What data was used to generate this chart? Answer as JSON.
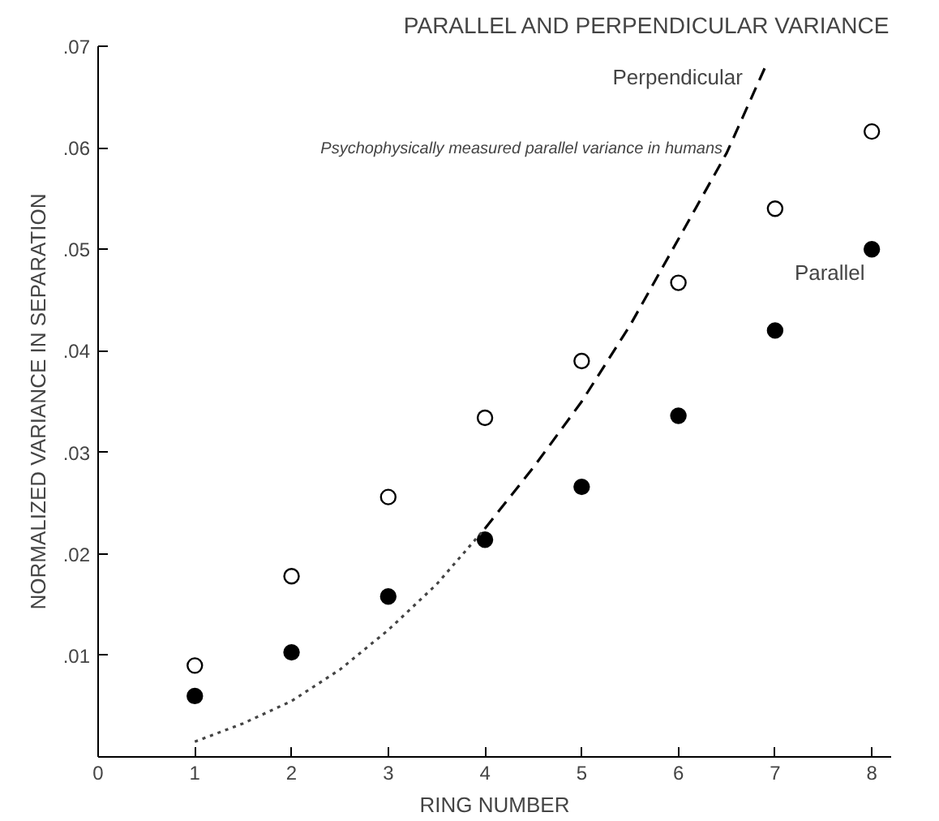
{
  "chart_data": {
    "type": "scatter",
    "title": "PARALLEL AND PERPENDICULAR VARIANCE",
    "xlabel": "RING NUMBER",
    "ylabel": "NORMALIZED VARIANCE IN SEPARATION",
    "xlim": [
      0,
      8.2
    ],
    "ylim": [
      0,
      0.07
    ],
    "xticks": [
      0,
      1,
      2,
      3,
      4,
      5,
      6,
      7,
      8
    ],
    "yticks": [
      {
        "value": 0.01,
        "label": ".01"
      },
      {
        "value": 0.02,
        "label": ".02"
      },
      {
        "value": 0.03,
        "label": ".03"
      },
      {
        "value": 0.04,
        "label": ".04"
      },
      {
        "value": 0.05,
        "label": ".05"
      },
      {
        "value": 0.06,
        "label": ".06"
      },
      {
        "value": 0.07,
        "label": ".07"
      }
    ],
    "annotations": [
      "Psychophysically measured parallel variance in humans"
    ],
    "series": [
      {
        "marker": "circle",
        "color": "#ffffff",
        "x": [
          1,
          2,
          3,
          4,
          5,
          6,
          7,
          8
        ],
        "values": [
          0.009,
          0.0178,
          0.0256,
          0.0334,
          0.039,
          0.0467,
          0.054,
          0.0616
        ]
      },
      {
        "marker": "circle",
        "name": "Parallel",
        "color": "#000000",
        "x": [
          1,
          2,
          3,
          4,
          5,
          6,
          7,
          8
        ],
        "values": [
          0.006,
          0.0103,
          0.0158,
          0.0214,
          0.0266,
          0.0336,
          0.042,
          0.05
        ]
      },
      {
        "type": "line",
        "line_style": "dotted",
        "color": "#444444",
        "x": [
          1,
          1.5,
          2,
          2.5,
          3,
          3.5,
          4
        ],
        "values": [
          0.0015,
          0.0033,
          0.0055,
          0.0086,
          0.0125,
          0.017,
          0.0225
        ]
      },
      {
        "type": "line",
        "name": "Perpendicular",
        "line_style": "dashed",
        "color": "#000000",
        "x": [
          4,
          4.5,
          5,
          5.5,
          6,
          6.5,
          6.9
        ],
        "values": [
          0.0225,
          0.0285,
          0.035,
          0.0425,
          0.051,
          0.0595,
          0.068
        ]
      }
    ]
  }
}
